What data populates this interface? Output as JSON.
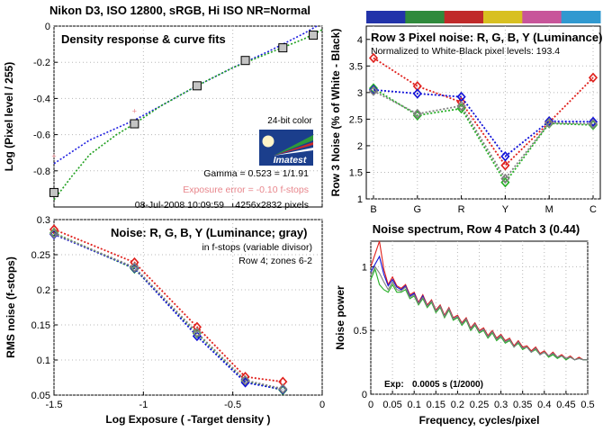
{
  "figure_title": "Nikon D3, ISO 12800, sRGB, Hi ISO NR=Normal",
  "colors": {
    "figure_title": "#3a006e",
    "red": "#e0201c",
    "green": "#28b028",
    "blue": "#1010d8",
    "gray": "#808080",
    "marker_fill": "#c4c4c4",
    "fit_blue": "#2020e0",
    "fit_green": "#20a020",
    "exposure_error": "#e8868c",
    "imatest_blue": "#1b3e8c",
    "imatest_green": "#2e9a3a"
  },
  "logo": {
    "caption": "24-bit color",
    "name": "Imatest"
  },
  "chart_data": [
    {
      "id": "density",
      "type": "scatter",
      "title": "Density response & curve fits",
      "xlabel": "",
      "ylabel": "Log (Pixel level / 255)",
      "xlim": [
        -1.5,
        0
      ],
      "ylim": [
        -1,
        0
      ],
      "xticks": [
        -1.5,
        -1,
        -0.5,
        0
      ],
      "xtick_labels": [
        "",
        "",
        "",
        ""
      ],
      "yticks": [
        0,
        -0.2,
        -0.4,
        -0.6,
        -0.8
      ],
      "ytick_labels": [
        "0",
        "-0.2",
        "-0.4",
        "-0.6",
        "-0.8"
      ],
      "grid": true,
      "points": {
        "x": [
          -1.5,
          -1.05,
          -0.7,
          -0.43,
          -0.22,
          -0.05
        ],
        "y": [
          -0.92,
          -0.54,
          -0.33,
          -0.19,
          -0.12,
          -0.05
        ]
      },
      "fit_blue": {
        "x": [
          -1.5,
          -1.3,
          -1.05,
          -0.9,
          -0.7,
          -0.5,
          -0.3,
          -0.1,
          -0.03
        ],
        "y": [
          -0.76,
          -0.63,
          -0.52,
          -0.44,
          -0.33,
          -0.23,
          -0.14,
          -0.04,
          0.0
        ]
      },
      "fit_green": {
        "x": [
          -1.5,
          -1.4,
          -1.3,
          -1.15,
          -1.05,
          -0.9,
          -0.7,
          -0.5,
          -0.3,
          -0.1,
          0.0
        ],
        "y": [
          -0.96,
          -0.83,
          -0.71,
          -0.6,
          -0.54,
          -0.44,
          -0.33,
          -0.23,
          -0.15,
          -0.07,
          -0.02
        ]
      },
      "pink_markers": {
        "x": [
          -1.5,
          -1.05
        ],
        "y": [
          -0.72,
          -0.47
        ]
      },
      "annotations": {
        "gamma": "Gamma = 0.523 = 1/1.91",
        "exposure_error": "Exposure error = -0.10 f-stops",
        "date": "08-Jul-2008 10:09:59",
        "pixels": "4256x2832 pixels"
      }
    },
    {
      "id": "noise",
      "type": "line",
      "title": "Noise: R, G, B, Y (Luminance; gray)",
      "subtitle": "in f-stops (variable divisor)",
      "subtitle2": "Row 4; zones 6-2",
      "xlabel": "Log Exposure ( -Target density )",
      "ylabel": "RMS noise (f-stops)",
      "xlim": [
        -1.5,
        0
      ],
      "ylim": [
        0.05,
        0.3
      ],
      "xticks": [
        -1.5,
        -1,
        -0.5,
        0
      ],
      "xtick_labels": [
        "-1.5",
        "-1",
        "-0.5",
        "0"
      ],
      "yticks": [
        0.05,
        0.1,
        0.15,
        0.2,
        0.25,
        0.3
      ],
      "ytick_labels": [
        "0.05",
        "0.1",
        "0.15",
        "0.2",
        "0.25",
        "0.3"
      ],
      "grid": true,
      "x": [
        -1.5,
        -1.05,
        -0.7,
        -0.43,
        -0.22
      ],
      "series": [
        {
          "color": "red",
          "values": [
            0.286,
            0.239,
            0.147,
            0.076,
            0.069
          ]
        },
        {
          "color": "green",
          "values": [
            0.281,
            0.23,
            0.138,
            0.07,
            0.057
          ]
        },
        {
          "color": "blue",
          "values": [
            0.279,
            0.231,
            0.134,
            0.068,
            0.058
          ]
        },
        {
          "color": "gray",
          "values": [
            0.28,
            0.232,
            0.139,
            0.071,
            0.059
          ]
        }
      ]
    },
    {
      "id": "pixel-noise",
      "type": "line",
      "title": "Row 3 Pixel noise: R, G, B, Y (Luminance)",
      "subtitle": "Normalized to White-Black pixel levels: 193.4",
      "xlabel": "",
      "ylabel": "Row 3 Noise (% of White - Black)",
      "categories": [
        "B",
        "G",
        "R",
        "Y",
        "M",
        "C"
      ],
      "ylim": [
        1,
        4.25
      ],
      "yticks": [
        1,
        1.5,
        2,
        2.5,
        3,
        3.5,
        4
      ],
      "ytick_labels": [
        "1",
        "1.5",
        "2",
        "2.5",
        "3",
        "3.5",
        "4"
      ],
      "grid": true,
      "series": [
        {
          "color": "red",
          "values": [
            3.65,
            3.12,
            2.82,
            1.63,
            2.44,
            3.28
          ]
        },
        {
          "color": "green",
          "values": [
            3.08,
            2.57,
            2.7,
            1.31,
            2.42,
            2.39
          ]
        },
        {
          "color": "blue",
          "values": [
            3.05,
            2.98,
            2.92,
            1.8,
            2.46,
            2.45
          ]
        },
        {
          "color": "gray",
          "values": [
            3.03,
            2.6,
            2.75,
            1.38,
            2.43,
            2.41
          ]
        }
      ],
      "color_strip": [
        "#2233aa",
        "#2f8a3c",
        "#c02a2a",
        "#d8c020",
        "#c8559a",
        "#3099d0"
      ]
    },
    {
      "id": "noise-spectrum",
      "type": "line",
      "title": "Noise spectrum, Row 4 Patch 3 (0.44)",
      "xlabel": "Frequency, cycles/pixel",
      "ylabel": "Noise power",
      "xlim": [
        0,
        0.5
      ],
      "ylim": [
        0,
        1.2
      ],
      "xticks": [
        0,
        0.05,
        0.1,
        0.15,
        0.2,
        0.25,
        0.3,
        0.35,
        0.4,
        0.45,
        0.5
      ],
      "xtick_labels": [
        "0",
        "0.05",
        "0.1",
        "0.15",
        "0.2",
        "0.25",
        "0.3",
        "0.35",
        "0.4",
        "0.45",
        "0.5"
      ],
      "yticks": [
        0,
        0.5,
        1
      ],
      "ytick_labels": [
        "0",
        "0.5",
        "1"
      ],
      "grid": true,
      "exposure_text": "Exp:",
      "exposure_value": "0.0005 s  (1/2000)",
      "x": [
        0.0,
        0.01,
        0.02,
        0.03,
        0.04,
        0.05,
        0.06,
        0.07,
        0.08,
        0.09,
        0.1,
        0.11,
        0.12,
        0.13,
        0.14,
        0.15,
        0.16,
        0.17,
        0.18,
        0.19,
        0.2,
        0.21,
        0.22,
        0.23,
        0.24,
        0.25,
        0.26,
        0.27,
        0.28,
        0.29,
        0.3,
        0.31,
        0.32,
        0.33,
        0.34,
        0.35,
        0.36,
        0.37,
        0.38,
        0.39,
        0.4,
        0.41,
        0.42,
        0.43,
        0.44,
        0.45,
        0.46,
        0.47,
        0.48,
        0.49,
        0.5
      ],
      "series": [
        {
          "color": "red",
          "values": [
            1.0,
            1.1,
            1.2,
            0.98,
            0.86,
            0.92,
            0.85,
            0.83,
            0.86,
            0.78,
            0.8,
            0.72,
            0.78,
            0.7,
            0.74,
            0.66,
            0.7,
            0.62,
            0.68,
            0.6,
            0.62,
            0.56,
            0.6,
            0.52,
            0.56,
            0.5,
            0.52,
            0.46,
            0.5,
            0.44,
            0.47,
            0.42,
            0.44,
            0.38,
            0.42,
            0.37,
            0.38,
            0.34,
            0.37,
            0.32,
            0.34,
            0.3,
            0.33,
            0.29,
            0.31,
            0.28,
            0.3,
            0.27,
            0.29,
            0.27,
            0.27
          ]
        },
        {
          "color": "blue",
          "values": [
            0.96,
            1.02,
            1.08,
            0.94,
            0.85,
            0.9,
            0.84,
            0.82,
            0.85,
            0.77,
            0.79,
            0.71,
            0.77,
            0.69,
            0.73,
            0.65,
            0.69,
            0.61,
            0.67,
            0.59,
            0.61,
            0.55,
            0.59,
            0.51,
            0.55,
            0.49,
            0.51,
            0.45,
            0.49,
            0.43,
            0.46,
            0.41,
            0.43,
            0.37,
            0.41,
            0.36,
            0.37,
            0.33,
            0.36,
            0.31,
            0.33,
            0.3,
            0.32,
            0.29,
            0.3,
            0.28,
            0.29,
            0.27,
            0.28,
            0.27,
            0.27
          ]
        },
        {
          "color": "green",
          "values": [
            0.9,
            0.98,
            0.86,
            0.82,
            0.8,
            0.86,
            0.8,
            0.8,
            0.82,
            0.75,
            0.77,
            0.7,
            0.75,
            0.68,
            0.72,
            0.64,
            0.68,
            0.6,
            0.66,
            0.58,
            0.6,
            0.54,
            0.58,
            0.5,
            0.54,
            0.48,
            0.5,
            0.44,
            0.48,
            0.42,
            0.45,
            0.4,
            0.42,
            0.37,
            0.4,
            0.35,
            0.37,
            0.33,
            0.35,
            0.31,
            0.33,
            0.29,
            0.31,
            0.28,
            0.3,
            0.27,
            0.29,
            0.27,
            0.28,
            0.27,
            0.27
          ]
        },
        {
          "color": "gray",
          "values": [
            0.93,
            1.0,
            0.95,
            0.88,
            0.82,
            0.88,
            0.82,
            0.81,
            0.84,
            0.76,
            0.78,
            0.71,
            0.76,
            0.69,
            0.73,
            0.65,
            0.69,
            0.61,
            0.67,
            0.59,
            0.61,
            0.55,
            0.59,
            0.51,
            0.55,
            0.49,
            0.51,
            0.45,
            0.49,
            0.43,
            0.46,
            0.41,
            0.43,
            0.37,
            0.41,
            0.36,
            0.37,
            0.33,
            0.36,
            0.31,
            0.33,
            0.3,
            0.32,
            0.29,
            0.3,
            0.28,
            0.29,
            0.27,
            0.28,
            0.27,
            0.27
          ]
        }
      ]
    }
  ]
}
